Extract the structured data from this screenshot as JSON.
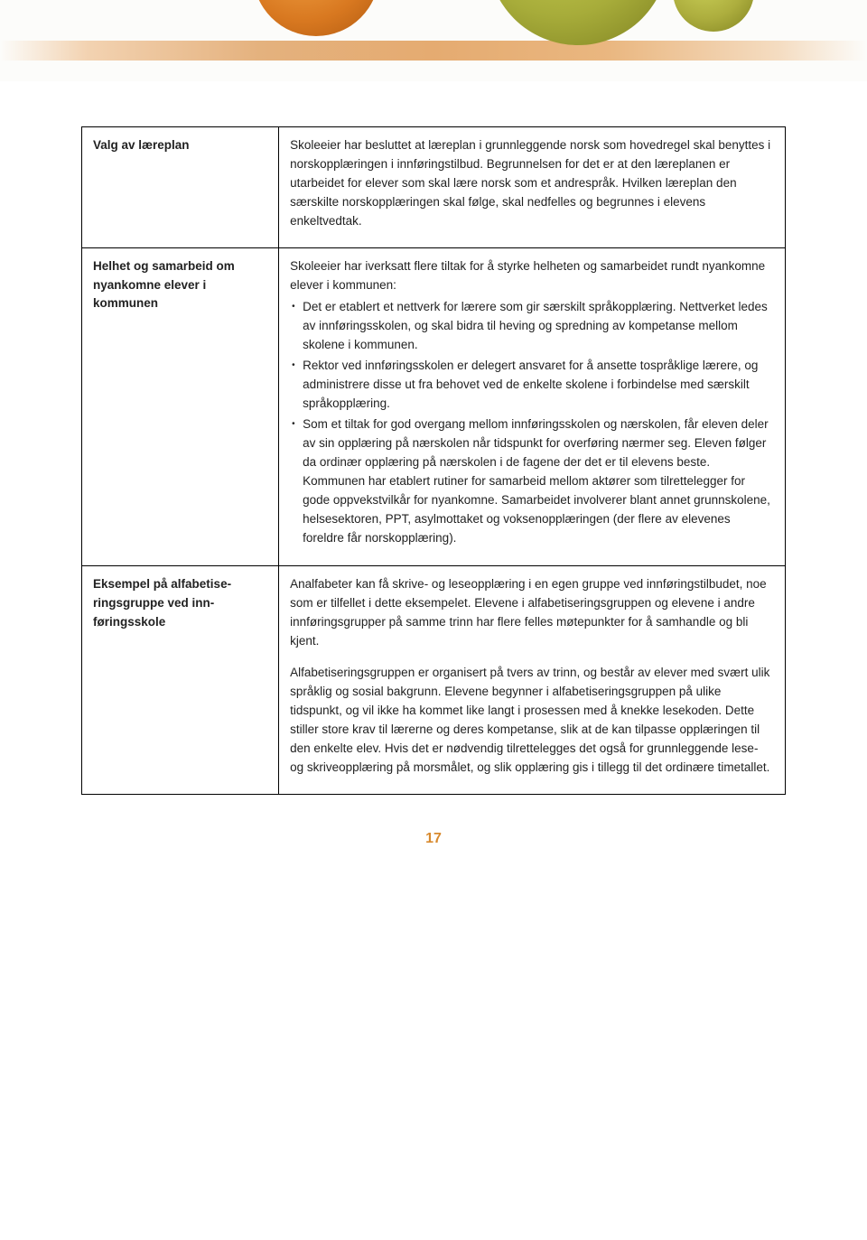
{
  "decor": {
    "band_color_start": "#e69b50",
    "band_color_end": "#e6a055",
    "orange_circle": "#d87820",
    "olive_circle": "#a7ac3a"
  },
  "rows": [
    {
      "label": "Valg av læreplan",
      "body": "Skoleeier har besluttet at læreplan i grunnleggende norsk som hovedregel skal benyttes i norskopplæringen i innføringstilbud. Begrunnelsen for det er at den læreplanen er utarbeidet for elever som skal lære norsk som et andrespråk. Hvilken læreplan den særskilte norskopplæringen skal følge, skal nedfelles og begrunnes i elevens enkeltvedtak."
    },
    {
      "label": "Helhet og samarbeid om nyankomne elever i kommunen",
      "intro": "Skoleeier har iverksatt flere tiltak for å styrke helheten og samarbeidet rundt nyankomne elever i kommunen:",
      "bullets": [
        "Det er etablert et nettverk for lærere som gir særskilt språkopplæring. Nettverket ledes av innføringsskolen, og skal bidra til heving og spredning av kompetanse mellom skolene i kommunen.",
        "Rektor ved innføringsskolen er delegert ansvaret for å ansette tospråklige lærere, og administrere disse ut fra behovet ved de enkelte skolene i forbindelse med særskilt språkopplæring.",
        "Som et tiltak for god overgang mellom innføringsskolen og nærskolen, får eleven deler av sin opplæring på nærskolen når tidspunkt for overføring nærmer seg. Eleven følger da ordinær opplæring på nærskolen i de fagene der det er til elevens beste. Kommunen har etablert rutiner for samarbeid mellom aktører som tilrettelegger for gode oppvekstvilkår for nyankomne. Samarbeidet involverer blant annet grunnskolene, helsesektoren, PPT, asylmottaket og voksenopplæringen (der flere av elevenes foreldre får norskopplæring)."
      ]
    },
    {
      "label": "Eksempel på alfabetise­ringsgruppe ved inn­føringsskole",
      "paragraphs": [
        "Analfabeter kan få skrive- og leseopplæring i en egen gruppe ved innføringstilbudet, noe som er tilfellet i dette eksempelet. Elevene i alfabetiseringsgruppen og elevene i andre innføringsgrupper på samme trinn har flere felles møtepunkter for å samhandle og bli kjent.",
        "Alfabetiseringsgruppen er organisert på tvers av trinn, og består av elever med svært ulik språklig og sosial bakgrunn. Elevene begynner i alfabetiseringsgruppen på ulike tidspunkt, og vil ikke ha kommet like langt i prosessen med å knekke lesekoden. Dette stiller store krav til lærerne og deres kompetanse, slik at de kan tilpasse opplæringen til den enkelte elev. Hvis det er nødvendig tilrettelegges det også for grunnleggende lese- og skriveopplæring på morsmålet, og slik opplæring gis i tillegg til det ordinære timetallet."
      ]
    }
  ],
  "page_number": "17",
  "page_number_color": "#d88a2e"
}
